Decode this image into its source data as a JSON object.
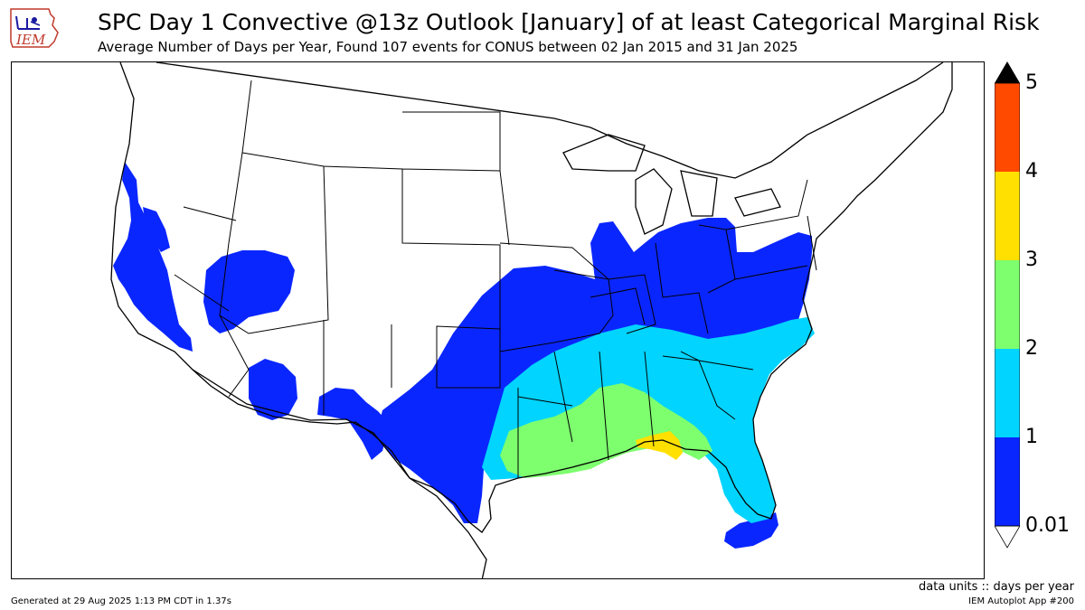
{
  "header": {
    "logo_text": "IEM",
    "title": "SPC Day 1 Convective @13z Outlook [January] of at least Categorical Marginal Risk",
    "subtitle": "Average Number of Days per Year, Found 107 events for CONUS between 02 Jan 2015 and 31 Jan 2025"
  },
  "map": {
    "region": "CONUS",
    "base_color": "#ffffff",
    "border_color": "#000000"
  },
  "colorbar": {
    "levels": [
      "0.01",
      "1",
      "2",
      "3",
      "4",
      "5"
    ],
    "bins": [
      {
        "from": 0.01,
        "to": 1,
        "color": "#0a26ff"
      },
      {
        "from": 1,
        "to": 2,
        "color": "#00d4ff"
      },
      {
        "from": 2,
        "to": 3,
        "color": "#7dff6e"
      },
      {
        "from": 3,
        "to": 4,
        "color": "#ffe000"
      },
      {
        "from": 4,
        "to": 5,
        "color": "#ff4a00"
      }
    ],
    "under_color": "#ffffff",
    "over_color": "#000000"
  },
  "footer": {
    "units": "data units :: days per year",
    "generated": "Generated at 29 Aug 2025 1:13 PM CDT in 1.37s",
    "app": "IEM Autoplot App #200"
  }
}
